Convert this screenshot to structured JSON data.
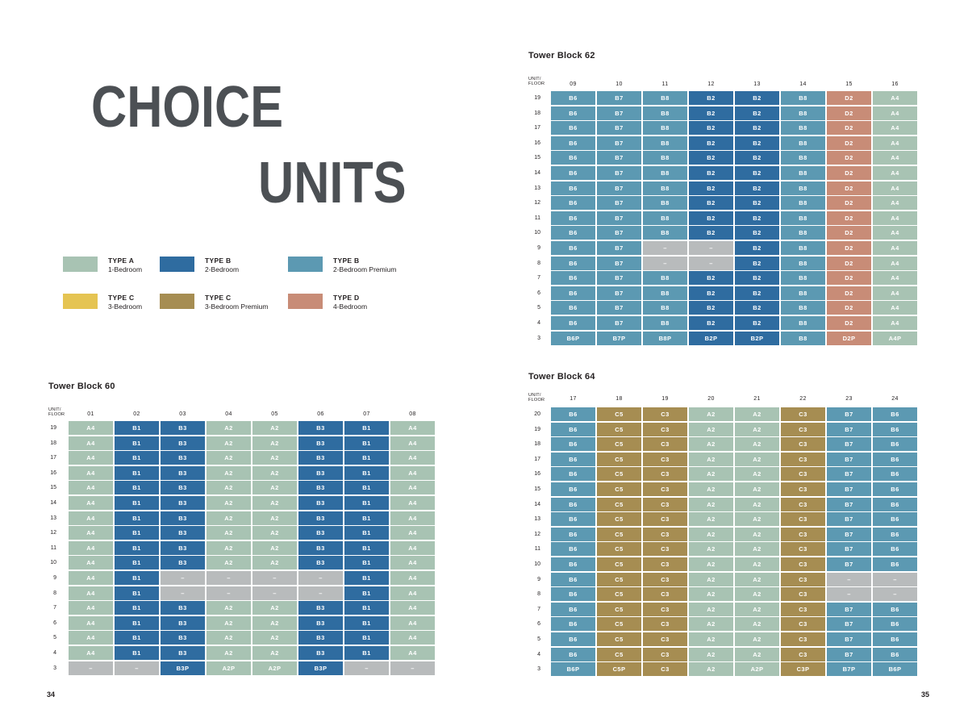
{
  "page": {
    "title_line1": "CHOICE",
    "title_line2": "UNITS",
    "title_color": "#4c5054",
    "page_number_left": "34",
    "page_number_right": "35"
  },
  "corner": {
    "line1": "UNIT/",
    "line2": "FLOOR"
  },
  "colors": {
    "A": "#a8c3b3",
    "B": "#2f6ca0",
    "BP": "#5c99b2",
    "C": "#e5c452",
    "CP": "#a68d52",
    "D": "#c88c77",
    "X": "#b8bbbc"
  },
  "type_map": {
    "A2": "A",
    "A4": "A",
    "A2P": "A",
    "A4P": "A",
    "B1": "B",
    "B2": "B",
    "B3": "B",
    "B2P": "B",
    "B3P": "B",
    "B6": "BP",
    "B7": "BP",
    "B8": "BP",
    "B6P": "BP",
    "B7P": "BP",
    "B8P": "BP",
    "C3": "CP",
    "C5": "CP",
    "C3P": "CP",
    "C5P": "CP",
    "D2": "D",
    "D2P": "D",
    "–": "X"
  },
  "legend": {
    "items": [
      {
        "type": "TYPE A",
        "desc": "1-Bedroom",
        "color": "#a8c3b3"
      },
      {
        "type": "TYPE B",
        "desc": "2-Bedroom",
        "color": "#2f6ca0"
      },
      {
        "type": "TYPE B",
        "desc": "2-Bedroom Premium",
        "color": "#5c99b2"
      },
      {
        "type": "TYPE C",
        "desc": "3-Bedroom",
        "color": "#e5c452"
      },
      {
        "type": "TYPE C",
        "desc": "3-Bedroom Premium",
        "color": "#a68d52"
      },
      {
        "type": "TYPE D",
        "desc": "4-Bedroom",
        "color": "#c88c77"
      }
    ]
  },
  "blocks": [
    {
      "title": "Tower Block 62",
      "units": [
        "09",
        "10",
        "11",
        "12",
        "13",
        "14",
        "15",
        "16"
      ],
      "floors": [
        "19",
        "18",
        "17",
        "16",
        "15",
        "14",
        "13",
        "12",
        "11",
        "10",
        "9",
        "8",
        "7",
        "6",
        "5",
        "4",
        "3"
      ],
      "rows": [
        [
          "B6",
          "B7",
          "B8",
          "B2",
          "B2",
          "B8",
          "D2",
          "A4"
        ],
        [
          "B6",
          "B7",
          "B8",
          "B2",
          "B2",
          "B8",
          "D2",
          "A4"
        ],
        [
          "B6",
          "B7",
          "B8",
          "B2",
          "B2",
          "B8",
          "D2",
          "A4"
        ],
        [
          "B6",
          "B7",
          "B8",
          "B2",
          "B2",
          "B8",
          "D2",
          "A4"
        ],
        [
          "B6",
          "B7",
          "B8",
          "B2",
          "B2",
          "B8",
          "D2",
          "A4"
        ],
        [
          "B6",
          "B7",
          "B8",
          "B2",
          "B2",
          "B8",
          "D2",
          "A4"
        ],
        [
          "B6",
          "B7",
          "B8",
          "B2",
          "B2",
          "B8",
          "D2",
          "A4"
        ],
        [
          "B6",
          "B7",
          "B8",
          "B2",
          "B2",
          "B8",
          "D2",
          "A4"
        ],
        [
          "B6",
          "B7",
          "B8",
          "B2",
          "B2",
          "B8",
          "D2",
          "A4"
        ],
        [
          "B6",
          "B7",
          "B8",
          "B2",
          "B2",
          "B8",
          "D2",
          "A4"
        ],
        [
          "B6",
          "B7",
          "–",
          "–",
          "B2",
          "B8",
          "D2",
          "A4"
        ],
        [
          "B6",
          "B7",
          "–",
          "–",
          "B2",
          "B8",
          "D2",
          "A4"
        ],
        [
          "B6",
          "B7",
          "B8",
          "B2",
          "B2",
          "B8",
          "D2",
          "A4"
        ],
        [
          "B6",
          "B7",
          "B8",
          "B2",
          "B2",
          "B8",
          "D2",
          "A4"
        ],
        [
          "B6",
          "B7",
          "B8",
          "B2",
          "B2",
          "B8",
          "D2",
          "A4"
        ],
        [
          "B6",
          "B7",
          "B8",
          "B2",
          "B2",
          "B8",
          "D2",
          "A4"
        ],
        [
          "B6P",
          "B7P",
          "B8P",
          "B2P",
          "B2P",
          "B8",
          "D2P",
          "A4P"
        ]
      ]
    },
    {
      "title": "Tower Block 60",
      "units": [
        "01",
        "02",
        "03",
        "04",
        "05",
        "06",
        "07",
        "08"
      ],
      "floors": [
        "19",
        "18",
        "17",
        "16",
        "15",
        "14",
        "13",
        "12",
        "11",
        "10",
        "9",
        "8",
        "7",
        "6",
        "5",
        "4",
        "3"
      ],
      "rows": [
        [
          "A4",
          "B1",
          "B3",
          "A2",
          "A2",
          "B3",
          "B1",
          "A4"
        ],
        [
          "A4",
          "B1",
          "B3",
          "A2",
          "A2",
          "B3",
          "B1",
          "A4"
        ],
        [
          "A4",
          "B1",
          "B3",
          "A2",
          "A2",
          "B3",
          "B1",
          "A4"
        ],
        [
          "A4",
          "B1",
          "B3",
          "A2",
          "A2",
          "B3",
          "B1",
          "A4"
        ],
        [
          "A4",
          "B1",
          "B3",
          "A2",
          "A2",
          "B3",
          "B1",
          "A4"
        ],
        [
          "A4",
          "B1",
          "B3",
          "A2",
          "A2",
          "B3",
          "B1",
          "A4"
        ],
        [
          "A4",
          "B1",
          "B3",
          "A2",
          "A2",
          "B3",
          "B1",
          "A4"
        ],
        [
          "A4",
          "B1",
          "B3",
          "A2",
          "A2",
          "B3",
          "B1",
          "A4"
        ],
        [
          "A4",
          "B1",
          "B3",
          "A2",
          "A2",
          "B3",
          "B1",
          "A4"
        ],
        [
          "A4",
          "B1",
          "B3",
          "A2",
          "A2",
          "B3",
          "B1",
          "A4"
        ],
        [
          "A4",
          "B1",
          "–",
          "–",
          "–",
          "–",
          "B1",
          "A4"
        ],
        [
          "A4",
          "B1",
          "–",
          "–",
          "–",
          "–",
          "B1",
          "A4"
        ],
        [
          "A4",
          "B1",
          "B3",
          "A2",
          "A2",
          "B3",
          "B1",
          "A4"
        ],
        [
          "A4",
          "B1",
          "B3",
          "A2",
          "A2",
          "B3",
          "B1",
          "A4"
        ],
        [
          "A4",
          "B1",
          "B3",
          "A2",
          "A2",
          "B3",
          "B1",
          "A4"
        ],
        [
          "A4",
          "B1",
          "B3",
          "A2",
          "A2",
          "B3",
          "B1",
          "A4"
        ],
        [
          "–",
          "–",
          "B3P",
          "A2P",
          "A2P",
          "B3P",
          "–",
          "–"
        ]
      ]
    },
    {
      "title": "Tower Block 64",
      "units": [
        "17",
        "18",
        "19",
        "20",
        "21",
        "22",
        "23",
        "24"
      ],
      "floors": [
        "20",
        "19",
        "18",
        "17",
        "16",
        "15",
        "14",
        "13",
        "12",
        "11",
        "10",
        "9",
        "8",
        "7",
        "6",
        "5",
        "4",
        "3"
      ],
      "rows": [
        [
          "B6",
          "C5",
          "C3",
          "A2",
          "A2",
          "C3",
          "B7",
          "B6"
        ],
        [
          "B6",
          "C5",
          "C3",
          "A2",
          "A2",
          "C3",
          "B7",
          "B6"
        ],
        [
          "B6",
          "C5",
          "C3",
          "A2",
          "A2",
          "C3",
          "B7",
          "B6"
        ],
        [
          "B6",
          "C5",
          "C3",
          "A2",
          "A2",
          "C3",
          "B7",
          "B6"
        ],
        [
          "B6",
          "C5",
          "C3",
          "A2",
          "A2",
          "C3",
          "B7",
          "B6"
        ],
        [
          "B6",
          "C5",
          "C3",
          "A2",
          "A2",
          "C3",
          "B7",
          "B6"
        ],
        [
          "B6",
          "C5",
          "C3",
          "A2",
          "A2",
          "C3",
          "B7",
          "B6"
        ],
        [
          "B6",
          "C5",
          "C3",
          "A2",
          "A2",
          "C3",
          "B7",
          "B6"
        ],
        [
          "B6",
          "C5",
          "C3",
          "A2",
          "A2",
          "C3",
          "B7",
          "B6"
        ],
        [
          "B6",
          "C5",
          "C3",
          "A2",
          "A2",
          "C3",
          "B7",
          "B6"
        ],
        [
          "B6",
          "C5",
          "C3",
          "A2",
          "A2",
          "C3",
          "B7",
          "B6"
        ],
        [
          "B6",
          "C5",
          "C3",
          "A2",
          "A2",
          "C3",
          "–",
          "–"
        ],
        [
          "B6",
          "C5",
          "C3",
          "A2",
          "A2",
          "C3",
          "–",
          "–"
        ],
        [
          "B6",
          "C5",
          "C3",
          "A2",
          "A2",
          "C3",
          "B7",
          "B6"
        ],
        [
          "B6",
          "C5",
          "C3",
          "A2",
          "A2",
          "C3",
          "B7",
          "B6"
        ],
        [
          "B6",
          "C5",
          "C3",
          "A2",
          "A2",
          "C3",
          "B7",
          "B6"
        ],
        [
          "B6",
          "C5",
          "C3",
          "A2",
          "A2",
          "C3",
          "B7",
          "B6"
        ],
        [
          "B6P",
          "C5P",
          "C3",
          "A2",
          "A2P",
          "C3P",
          "B7P",
          "B6P"
        ]
      ]
    }
  ]
}
